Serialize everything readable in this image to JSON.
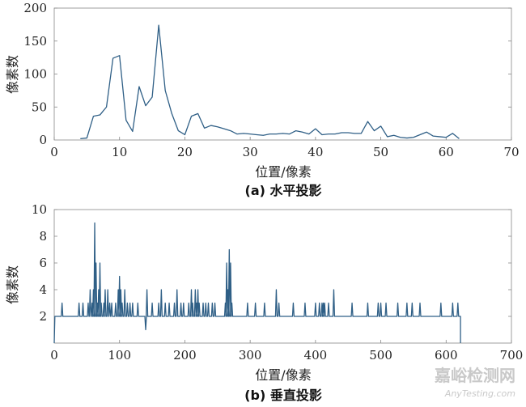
{
  "chart_data": [
    {
      "type": "line",
      "caption": "(a) 水平投影",
      "xlabel": "位置/像素",
      "ylabel": "像素数",
      "xlim": [
        0,
        70
      ],
      "ylim": [
        0,
        200
      ],
      "xticks": [
        "0",
        "10",
        "20",
        "30",
        "40",
        "50",
        "60",
        "70"
      ],
      "yticks": [
        "50",
        "100",
        "150",
        "200"
      ],
      "line_color": "#2f5f86",
      "series": [
        {
          "x": [
            4,
            5,
            6,
            7,
            8,
            9,
            10,
            11,
            12,
            13,
            14,
            15,
            16,
            17,
            18,
            19,
            20,
            21,
            22,
            23,
            24,
            25,
            26,
            27,
            28,
            29,
            30,
            31,
            32,
            33,
            34,
            35,
            36,
            37,
            38,
            39,
            40,
            41,
            42,
            43,
            44,
            45,
            46,
            47,
            48,
            49,
            50,
            51,
            52,
            53,
            54,
            55,
            56,
            57,
            58,
            59,
            60,
            61,
            62
          ],
          "y": [
            2,
            3,
            36,
            38,
            50,
            124,
            128,
            30,
            13,
            81,
            52,
            65,
            174,
            75,
            40,
            14,
            8,
            36,
            40,
            18,
            22,
            20,
            17,
            14,
            9,
            10,
            9,
            8,
            7,
            9,
            9,
            10,
            9,
            14,
            12,
            9,
            17,
            8,
            9,
            9,
            11,
            11,
            10,
            10,
            28,
            14,
            21,
            5,
            7,
            4,
            3,
            4,
            8,
            12,
            6,
            5,
            4,
            10,
            2
          ]
        }
      ]
    },
    {
      "type": "line",
      "caption": "(b) 垂直投影",
      "xlabel": "位置/像素",
      "ylabel": "像素数",
      "xlim": [
        0,
        700
      ],
      "ylim": [
        0,
        10
      ],
      "xticks": [
        "0",
        "100",
        "200",
        "300",
        "400",
        "500",
        "600",
        "700"
      ],
      "yticks": [
        "2",
        "4",
        "6",
        "8",
        "10"
      ],
      "line_color": "#2f5f86",
      "baseline": 2,
      "extent": [
        0,
        622
      ],
      "spikes": [
        [
          0,
          0
        ],
        [
          1,
          2
        ],
        [
          12,
          3
        ],
        [
          38,
          3
        ],
        [
          44,
          3
        ],
        [
          52,
          3
        ],
        [
          55,
          4
        ],
        [
          58,
          3
        ],
        [
          60,
          4
        ],
        [
          62,
          9
        ],
        [
          64,
          6
        ],
        [
          66,
          3
        ],
        [
          68,
          4
        ],
        [
          70,
          6
        ],
        [
          72,
          3
        ],
        [
          76,
          3
        ],
        [
          78,
          4
        ],
        [
          82,
          4
        ],
        [
          85,
          3
        ],
        [
          88,
          3
        ],
        [
          94,
          3
        ],
        [
          98,
          4
        ],
        [
          100,
          5
        ],
        [
          102,
          4
        ],
        [
          104,
          3
        ],
        [
          108,
          4
        ],
        [
          112,
          3
        ],
        [
          116,
          3
        ],
        [
          120,
          3
        ],
        [
          128,
          3
        ],
        [
          140,
          1
        ],
        [
          142,
          4
        ],
        [
          150,
          3
        ],
        [
          160,
          3
        ],
        [
          164,
          4
        ],
        [
          170,
          3
        ],
        [
          176,
          3
        ],
        [
          184,
          3
        ],
        [
          188,
          4
        ],
        [
          194,
          3
        ],
        [
          198,
          3
        ],
        [
          206,
          3
        ],
        [
          210,
          4
        ],
        [
          212,
          3
        ],
        [
          216,
          4
        ],
        [
          218,
          3
        ],
        [
          220,
          4
        ],
        [
          222,
          3
        ],
        [
          228,
          3
        ],
        [
          232,
          3
        ],
        [
          236,
          3
        ],
        [
          242,
          3
        ],
        [
          246,
          3
        ],
        [
          262,
          3
        ],
        [
          264,
          6
        ],
        [
          266,
          4
        ],
        [
          268,
          7
        ],
        [
          270,
          6
        ],
        [
          272,
          3
        ],
        [
          296,
          3
        ],
        [
          308,
          3
        ],
        [
          322,
          3
        ],
        [
          340,
          4
        ],
        [
          344,
          3
        ],
        [
          366,
          3
        ],
        [
          384,
          3
        ],
        [
          400,
          3
        ],
        [
          406,
          3
        ],
        [
          410,
          3
        ],
        [
          412,
          3
        ],
        [
          414,
          3
        ],
        [
          420,
          3
        ],
        [
          428,
          4
        ],
        [
          456,
          3
        ],
        [
          480,
          3
        ],
        [
          496,
          3
        ],
        [
          500,
          3
        ],
        [
          508,
          3
        ],
        [
          526,
          3
        ],
        [
          540,
          3
        ],
        [
          548,
          3
        ],
        [
          560,
          3
        ],
        [
          592,
          3
        ],
        [
          610,
          3
        ],
        [
          618,
          3
        ],
        [
          622,
          0
        ]
      ]
    }
  ],
  "watermark": {
    "line1": "嘉峪检测网",
    "line2": "AnyTesting.com"
  }
}
